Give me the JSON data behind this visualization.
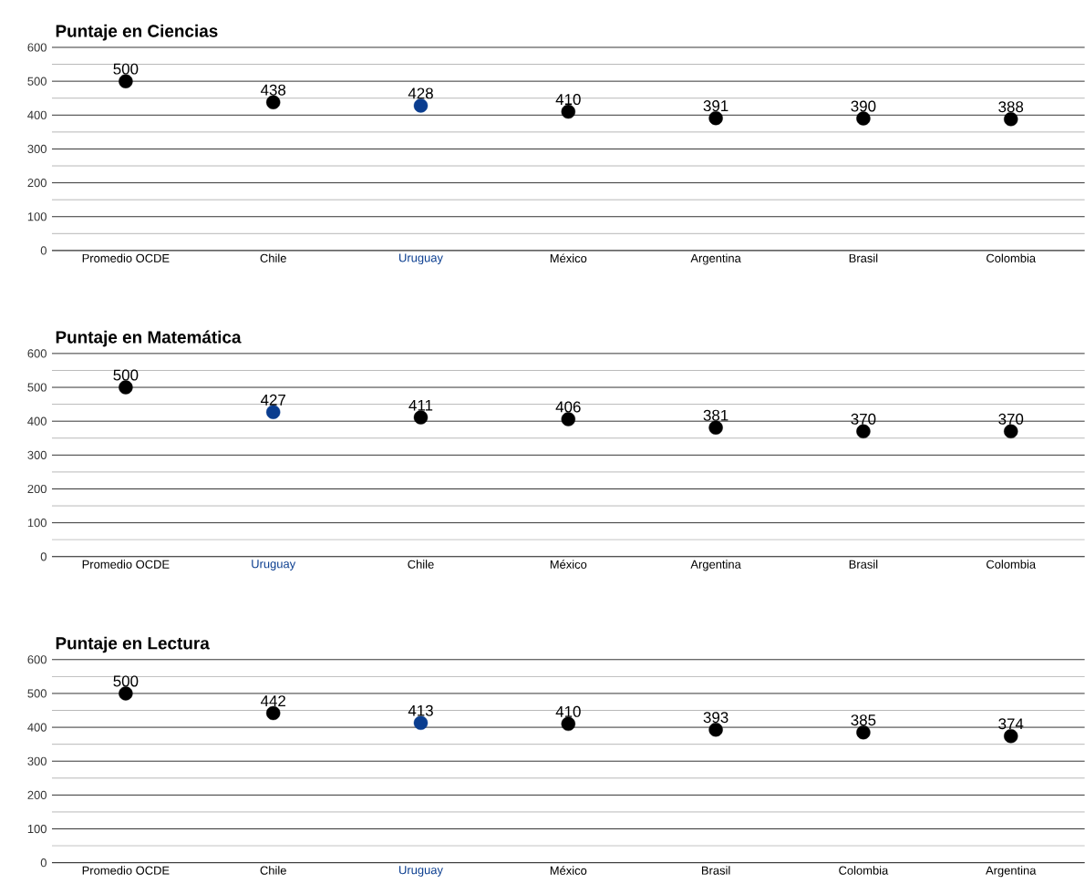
{
  "chart_data": [
    {
      "type": "scatter",
      "title": "Puntaje en Ciencias",
      "categories": [
        "Promedio OCDE",
        "Chile",
        "Uruguay",
        "México",
        "Argentina",
        "Brasil",
        "Colombia"
      ],
      "values": [
        500,
        438,
        428,
        410,
        391,
        390,
        388
      ],
      "colors": [
        "#000000",
        "#000000",
        "#0a3d8f",
        "#000000",
        "#000000",
        "#000000",
        "#000000"
      ],
      "ylim": [
        0,
        600
      ],
      "yticks": [
        0,
        100,
        200,
        300,
        400,
        500,
        600
      ],
      "grid": "y",
      "data_labels": true,
      "marker": "circle"
    },
    {
      "type": "scatter",
      "title": "Puntaje en Matemática",
      "categories": [
        "Promedio OCDE",
        "Uruguay",
        "Chile",
        "México",
        "Argentina",
        "Brasil",
        "Colombia"
      ],
      "values": [
        500,
        427,
        411,
        406,
        381,
        370,
        370
      ],
      "colors": [
        "#000000",
        "#0a3d8f",
        "#000000",
        "#000000",
        "#000000",
        "#000000",
        "#000000"
      ],
      "ylim": [
        0,
        600
      ],
      "yticks": [
        0,
        100,
        200,
        300,
        400,
        500,
        600
      ],
      "grid": "y",
      "data_labels": true,
      "marker": "circle"
    },
    {
      "type": "scatter",
      "title": "Puntaje en Lectura",
      "categories": [
        "Promedio OCDE",
        "Chile",
        "Uruguay",
        "México",
        "Brasil",
        "Colombia",
        "Argentina"
      ],
      "values": [
        500,
        442,
        413,
        410,
        393,
        385,
        374
      ],
      "colors": [
        "#000000",
        "#000000",
        "#0a3d8f",
        "#000000",
        "#000000",
        "#000000",
        "#000000"
      ],
      "ylim": [
        0,
        600
      ],
      "yticks": [
        0,
        100,
        200,
        300,
        400,
        500,
        600
      ],
      "grid": "y",
      "data_labels": true,
      "marker": "circle"
    }
  ]
}
